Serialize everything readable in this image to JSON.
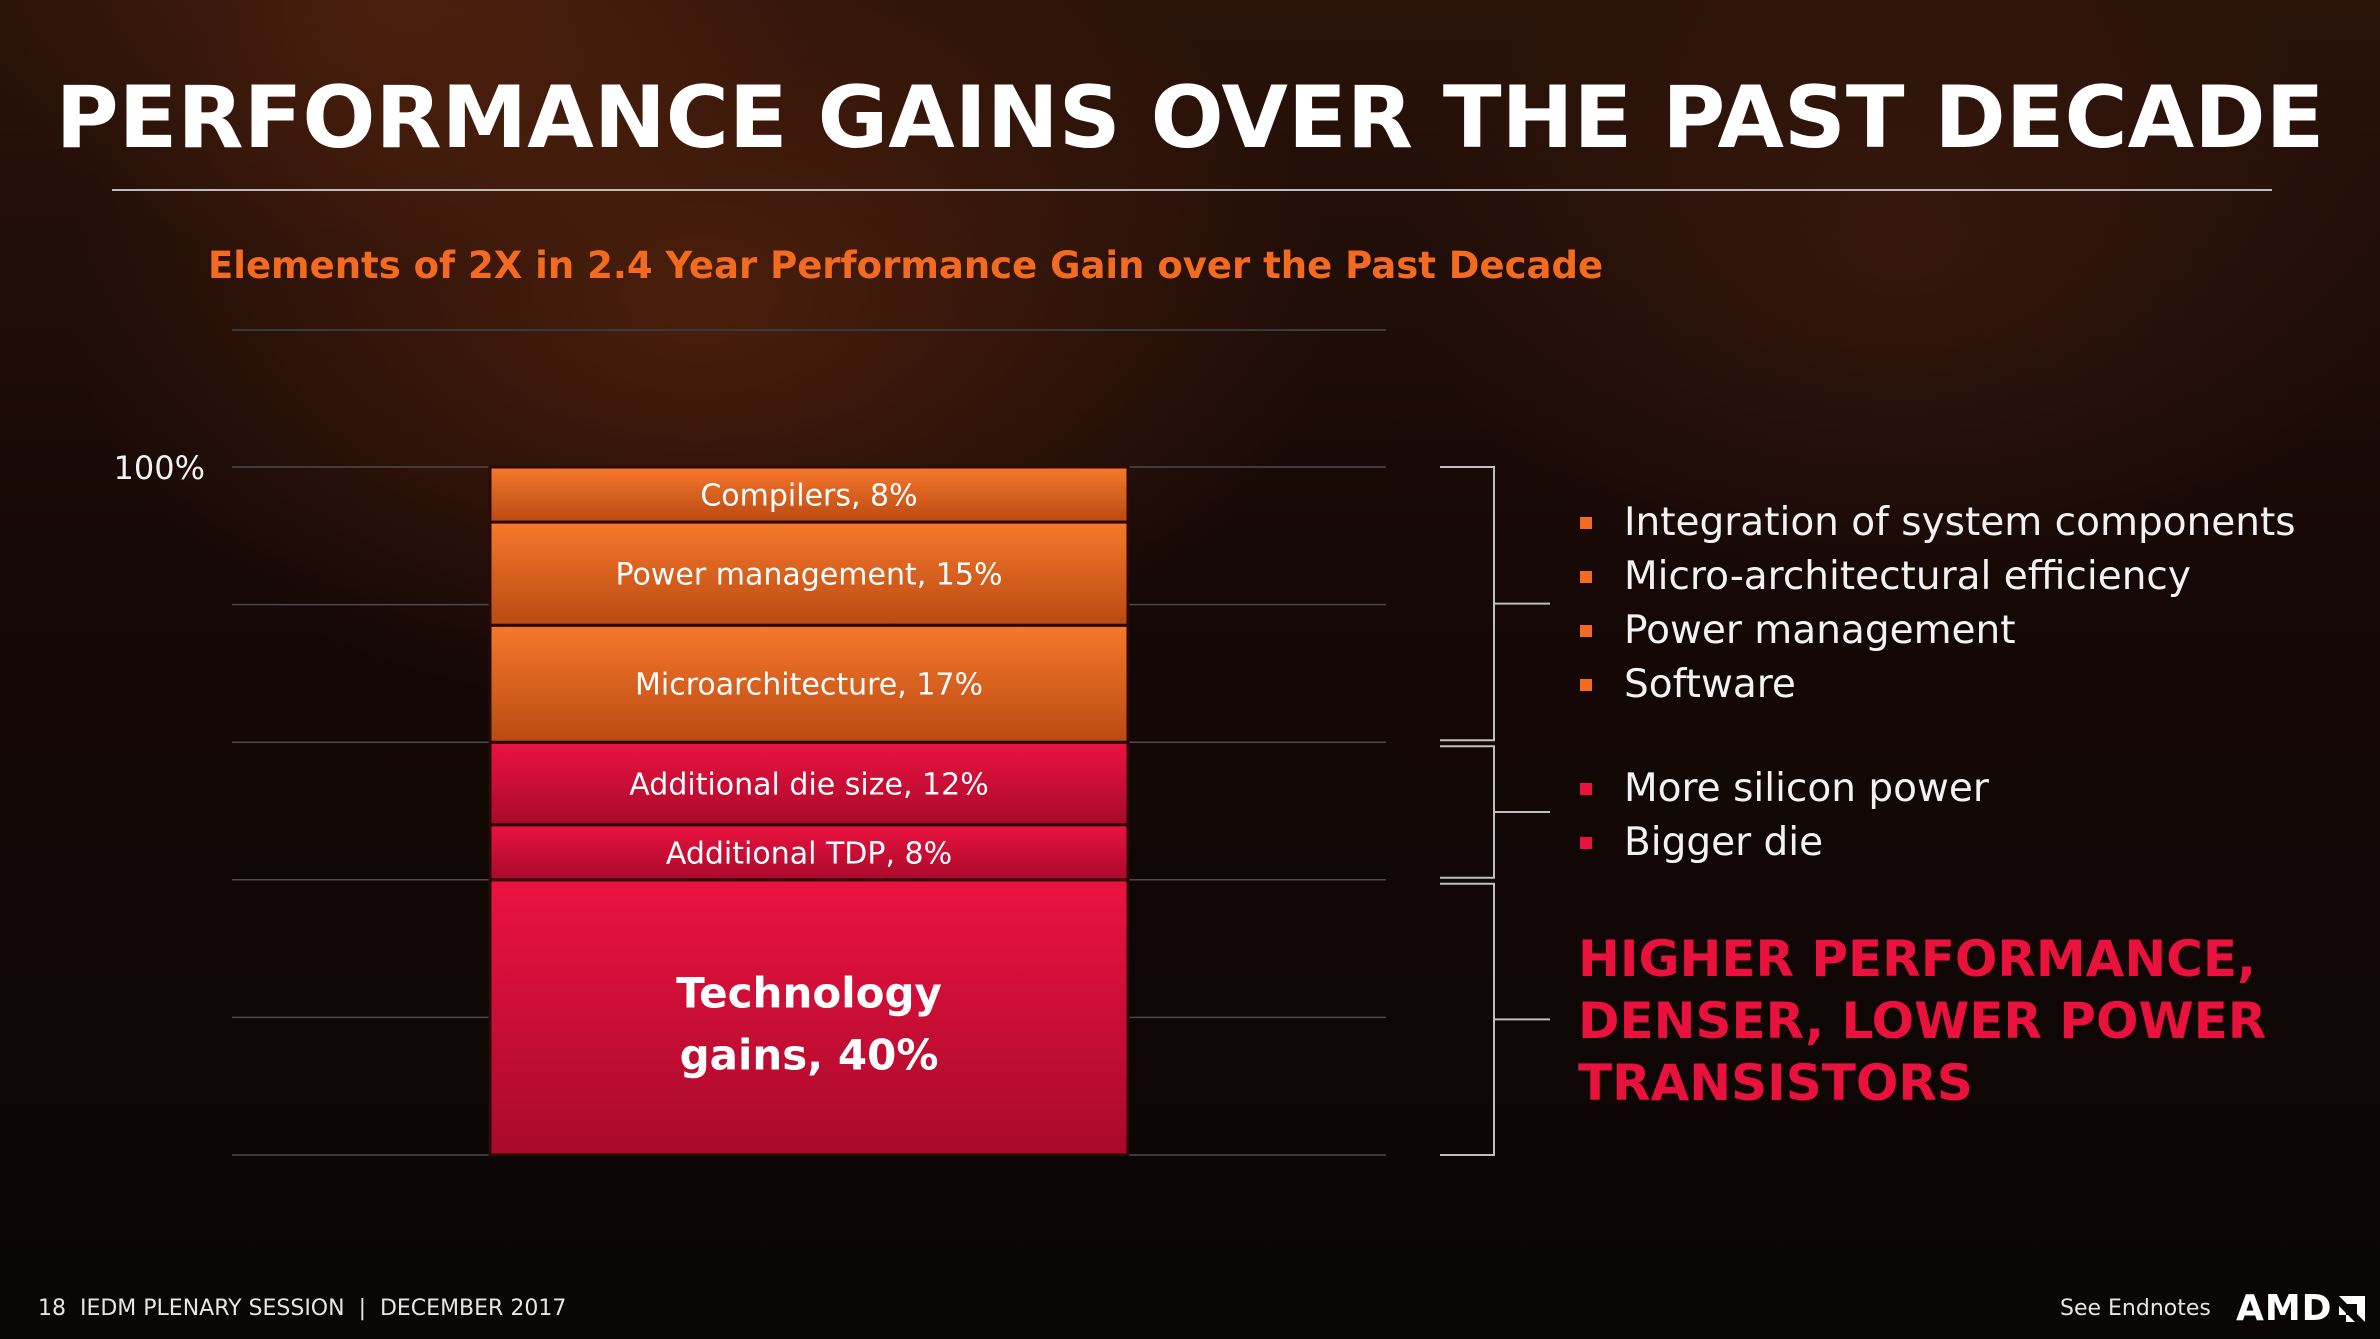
{
  "slide": {
    "title": "PERFORMANCE GAINS OVER THE PAST DECADE",
    "footer_left": "18  IEDM PLENARY SESSION  |  DECEMBER 2017",
    "footer_right": "See Endnotes",
    "logo": "AMD"
  },
  "chart_data": {
    "type": "bar",
    "stacked": true,
    "title": "Elements of 2X in 2.4 Year Performance Gain over the Past Decade",
    "ytick_label": "100%",
    "segments_bottom_to_top": [
      {
        "label": "Technology gains, 40%",
        "value": 40,
        "color": "#e8123c"
      },
      {
        "label": "Additional TDP, 8%",
        "value": 8,
        "color": "#e8123c"
      },
      {
        "label": "Additional die size, 12%",
        "value": 12,
        "color": "#e8123c"
      },
      {
        "label": "Microarchitecture, 17%",
        "value": 17,
        "color": "#f26b21"
      },
      {
        "label": "Power management, 15%",
        "value": 15,
        "color": "#f26b21"
      },
      {
        "label": "Compilers, 8%",
        "value": 8,
        "color": "#f26b21"
      }
    ],
    "grid": true
  },
  "groups": {
    "design": {
      "items": [
        "Integration of system components",
        "Micro-architectural efficiency",
        "Power management",
        "Software"
      ],
      "color": "#f26b21"
    },
    "power_die": {
      "items": [
        "More silicon power",
        "Bigger die"
      ],
      "color": "#e8123c"
    },
    "technology": {
      "callout": "HIGHER PERFORMANCE, DENSER, LOWER POWER TRANSISTORS",
      "color": "#e8123c"
    }
  }
}
